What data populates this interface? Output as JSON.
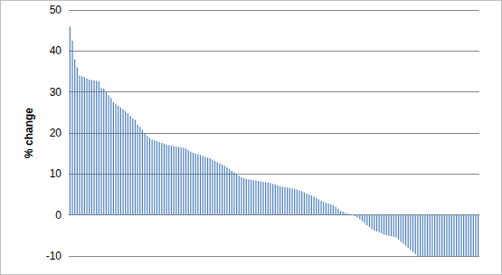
{
  "chart_data": {
    "type": "bar",
    "y_label": "% change",
    "categories": [
      null,
      null,
      null,
      null,
      null,
      null,
      null,
      null,
      null,
      null,
      null,
      null,
      null,
      null,
      null,
      null,
      null,
      null,
      null,
      null,
      null,
      null,
      null,
      null,
      null,
      null,
      null,
      null,
      null,
      null,
      null,
      null,
      null,
      null,
      null,
      null,
      null,
      null,
      null,
      null,
      null,
      null,
      null,
      null,
      null,
      null,
      null,
      null,
      null,
      null,
      null,
      null,
      null,
      null,
      null,
      null,
      null,
      null,
      null,
      null,
      null,
      null,
      null,
      null,
      null,
      null,
      null,
      null,
      null,
      null,
      null,
      null,
      null,
      null,
      null,
      null,
      null,
      null,
      null,
      null,
      null,
      null,
      null,
      null,
      null,
      null,
      null,
      null,
      null,
      null,
      null,
      null,
      null,
      null,
      null,
      null,
      null,
      null,
      null,
      null,
      null,
      null,
      null,
      null,
      null,
      null,
      null,
      null,
      null,
      null,
      null,
      null,
      null,
      null,
      null,
      null,
      null,
      null,
      null,
      null,
      null,
      null,
      null,
      null,
      null,
      null,
      null,
      null,
      null,
      null,
      null,
      null,
      null,
      null,
      null,
      null,
      null,
      null,
      null,
      null,
      null,
      null,
      null,
      null,
      null,
      null,
      null,
      null,
      null,
      null,
      null,
      null,
      null,
      null,
      null,
      null,
      null,
      null,
      null,
      null,
      null,
      null,
      null,
      null,
      null,
      null,
      null,
      null,
      null,
      null
    ],
    "values": [
      46,
      42.5,
      38,
      36,
      34,
      33.8,
      33.6,
      33.3,
      33,
      32.9,
      32.8,
      32.7,
      32.6,
      31,
      30.8,
      30,
      29.2,
      28.5,
      27.5,
      27,
      26.6,
      26.2,
      25.8,
      25.3,
      24.8,
      24.2,
      23.6,
      23.2,
      22,
      21.5,
      20.8,
      20,
      19.3,
      18.8,
      18.4,
      18.2,
      18,
      17.8,
      17.6,
      17.4,
      17.2,
      17,
      16.9,
      16.8,
      16.7,
      16.6,
      16.5,
      16.4,
      16.2,
      15.8,
      15.4,
      15.2,
      15,
      14.8,
      14.6,
      14.4,
      14.2,
      14,
      13.8,
      13.5,
      13.2,
      12.9,
      12.6,
      12.3,
      12,
      11.6,
      11.2,
      10.8,
      10.4,
      10,
      9.6,
      9.2,
      9,
      8.8,
      8.7,
      8.6,
      8.5,
      8.4,
      8.3,
      8.2,
      8.1,
      8,
      7.9,
      7.8,
      7.6,
      7.4,
      7.2,
      7,
      6.9,
      6.8,
      6.7,
      6.6,
      6.5,
      6.4,
      6.2,
      6,
      5.8,
      5.5,
      5.2,
      5,
      4.8,
      4.5,
      4.2,
      3.8,
      3.5,
      3.2,
      3,
      2.8,
      2.6,
      2.4,
      2,
      1.5,
      1,
      0.8,
      0.5,
      0.3,
      0.2,
      0.1,
      -0.3,
      -0.6,
      -1,
      -1.5,
      -2,
      -2.5,
      -3,
      -3.5,
      -3.8,
      -4,
      -4.2,
      -4.5,
      -4.8,
      -5,
      -5.1,
      -5.2,
      -5.3,
      -5.5,
      -6,
      -6.5,
      -7,
      -7.5,
      -8,
      -8.5,
      -9,
      -9.5,
      -10,
      -10,
      -10,
      -10,
      -10,
      -10,
      -10,
      -10,
      -10,
      -10,
      -10,
      -10,
      -10,
      -10,
      -10,
      -10,
      -10,
      -10,
      -10,
      -10,
      -10,
      -10,
      -10,
      -10,
      -10,
      -10
    ],
    "color": "#4a7ebb",
    "ylim": [
      -10,
      50
    ],
    "yticks": [
      -10,
      0,
      10,
      20,
      30,
      40,
      50
    ],
    "grid": true,
    "tick_labels": "y"
  }
}
